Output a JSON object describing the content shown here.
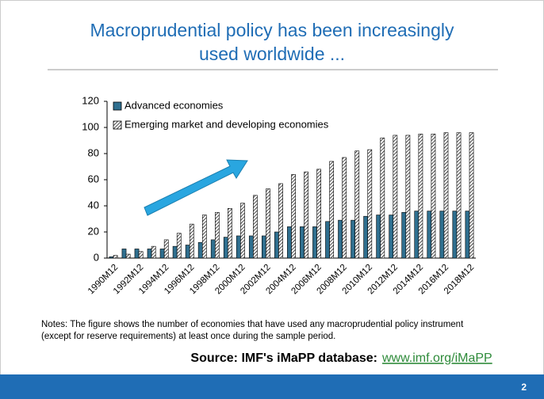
{
  "chart_data": {
    "type": "bar",
    "title": [
      "Macroprudential policy has been increasingly",
      "used worldwide ..."
    ],
    "categories": [
      "1990M12",
      null,
      "1992M12",
      null,
      "1994M12",
      null,
      "1996M12",
      null,
      "1998M12",
      null,
      "2000M12",
      null,
      "2002M12",
      null,
      "2004M12",
      null,
      "2006M12",
      null,
      "2008M12",
      null,
      "2010M12",
      null,
      "2012M12",
      null,
      "2014M12",
      null,
      "2016M12",
      null,
      "2018M12"
    ],
    "series": [
      {
        "name": "Advanced economies",
        "color": "#2f6f8f",
        "values": [
          1,
          7,
          7,
          7,
          7,
          9,
          10,
          12,
          14,
          16,
          17,
          17,
          17,
          20,
          24,
          24,
          24,
          28,
          29,
          29,
          32,
          33,
          33,
          35,
          36,
          36,
          36,
          36,
          36
        ]
      },
      {
        "name": "Emerging market and developing economies",
        "color": "#ffffff",
        "hatch": true,
        "values": [
          2,
          3,
          5,
          9,
          14,
          19,
          26,
          33,
          35,
          38,
          42,
          48,
          53,
          57,
          64,
          66,
          68,
          74,
          77,
          82,
          83,
          92,
          94,
          94,
          95,
          95,
          96,
          96,
          96
        ]
      }
    ],
    "ylim": [
      0,
      120
    ],
    "yticks": [
      0,
      20,
      40,
      60,
      80,
      100,
      120
    ],
    "legend": "upper left"
  },
  "notes": [
    "Notes: The figure shows the number of economies that have used any macroprudential policy instrument",
    "(except for reserve requirements) at least once during the sample period."
  ],
  "source": {
    "label": "Source: IMF's iMaPP database:",
    "link": "www.imf.org/iMaPP"
  },
  "page_number": 2
}
